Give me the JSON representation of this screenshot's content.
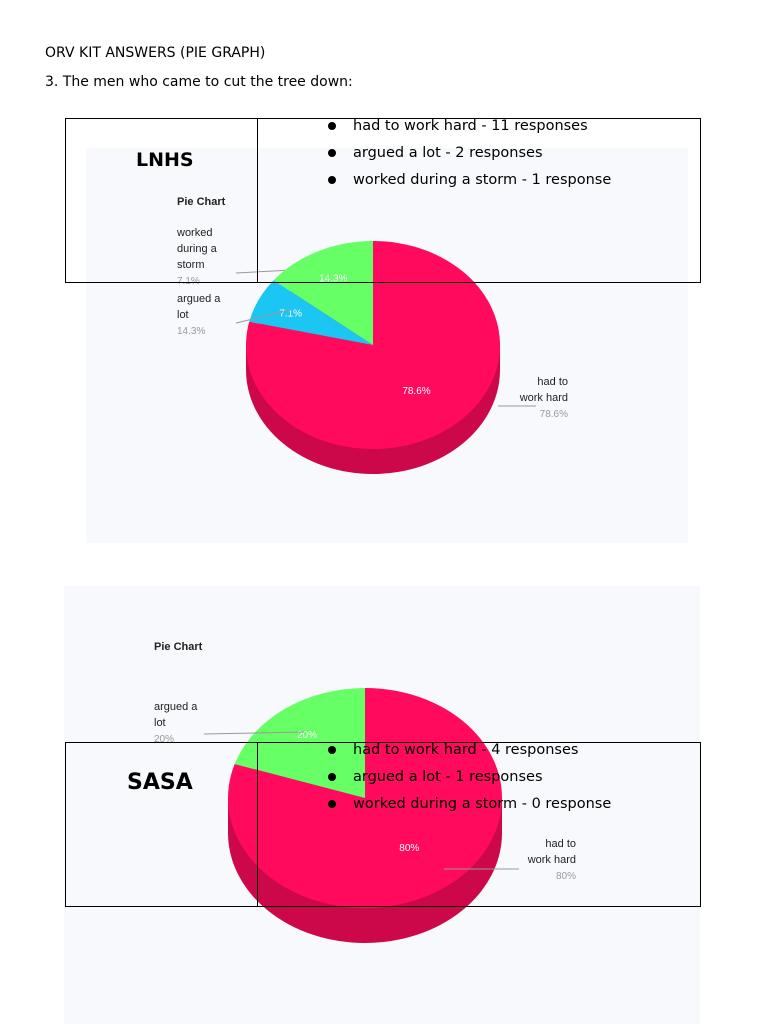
{
  "document": {
    "heading": "ORV KIT ANSWERS (PIE GRAPH)",
    "question": "3. The men who came to cut the tree down:"
  },
  "lnhs": {
    "school": "LNHS",
    "responses": [
      "had to work hard - 11 responses",
      "argued a lot - 2 responses",
      "worked during a storm - 1 response"
    ]
  },
  "sasa": {
    "school": "SASA",
    "responses": [
      "had to work hard - 4 responses",
      "argued a lot - 1 responses",
      "worked during a storm - 0 response"
    ]
  },
  "chart_data": [
    {
      "type": "pie",
      "title": "Pie Chart",
      "slices": [
        {
          "label": "had to work hard",
          "value": 78.6,
          "display": "78.6%",
          "color": "#ff0a5c"
        },
        {
          "label": "worked during a storm",
          "value": 7.1,
          "display": "7.1%",
          "color": "#1cc6f2"
        },
        {
          "label": "argued a lot",
          "value": 14.3,
          "display": "14.3%",
          "color": "#66ff66"
        }
      ]
    },
    {
      "type": "pie",
      "title": "Pie Chart",
      "slices": [
        {
          "label": "had to work hard",
          "value": 80,
          "display": "80%",
          "color": "#ff0a5c"
        },
        {
          "label": "argued a lot",
          "value": 20,
          "display": "20%",
          "color": "#66ff66"
        }
      ]
    }
  ]
}
